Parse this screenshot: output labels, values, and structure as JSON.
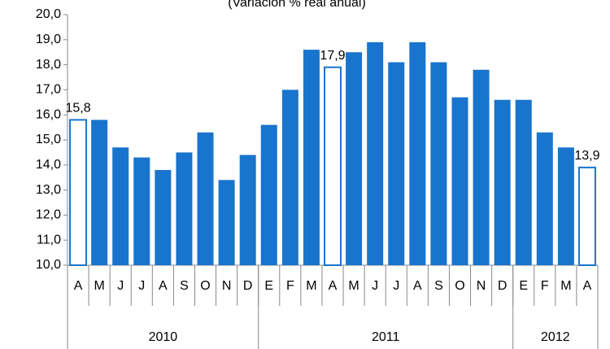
{
  "chart_data": {
    "type": "bar",
    "subtitle": "(Variación % real anual)",
    "categories": [
      "A",
      "M",
      "J",
      "J",
      "A",
      "S",
      "O",
      "N",
      "D",
      "E",
      "F",
      "M",
      "A",
      "M",
      "J",
      "J",
      "A",
      "S",
      "O",
      "N",
      "D",
      "E",
      "F",
      "M",
      "A"
    ],
    "values": [
      15.8,
      15.8,
      14.7,
      14.3,
      13.8,
      14.5,
      15.3,
      13.4,
      14.4,
      15.6,
      17.0,
      18.6,
      17.9,
      18.5,
      18.9,
      18.1,
      18.9,
      18.1,
      16.7,
      17.8,
      16.6,
      16.6,
      15.3,
      14.7,
      13.9
    ],
    "value_labels": [
      "15,8",
      null,
      null,
      null,
      null,
      null,
      null,
      null,
      null,
      null,
      null,
      null,
      "17,9",
      null,
      null,
      null,
      null,
      null,
      null,
      null,
      null,
      null,
      null,
      null,
      "13,9"
    ],
    "outlined": [
      0,
      12,
      24
    ],
    "groups": [
      {
        "label": "2010",
        "count": 9
      },
      {
        "label": "2011",
        "count": 12
      },
      {
        "label": "2012",
        "count": 4
      }
    ],
    "color": "#1874cd",
    "ylim": [
      10,
      20
    ],
    "yticks": [
      {
        "value": 10,
        "label": "10,0"
      },
      {
        "value": 11,
        "label": "11,0"
      },
      {
        "value": 12,
        "label": "12,0"
      },
      {
        "value": 13,
        "label": "13,0"
      },
      {
        "value": 14,
        "label": "14,0"
      },
      {
        "value": 15,
        "label": "15,0"
      },
      {
        "value": 16,
        "label": "16,0"
      },
      {
        "value": 17,
        "label": "17,0"
      },
      {
        "value": 18,
        "label": "18,0"
      },
      {
        "value": 19,
        "label": "19,0"
      },
      {
        "value": 20,
        "label": "20,0"
      }
    ]
  }
}
